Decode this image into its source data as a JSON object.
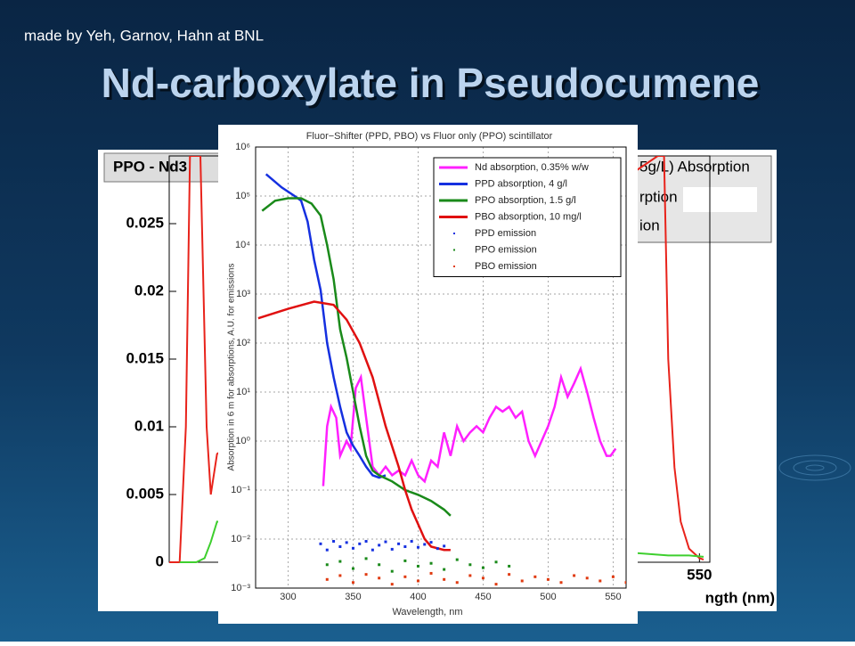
{
  "slide": {
    "credit": "made by Yeh, Garnov, Hahn at BNL",
    "title": "Nd-carboxylate in Pseudocumene"
  },
  "chart_data": [
    {
      "type": "line",
      "title": "PPO - Nd3",
      "xlabel": "ngth (nm)",
      "legend_fragments": [
        "5g/L) Absorption",
        "rption",
        "ion"
      ],
      "xlim": [
        295,
        555
      ],
      "xticks": [
        550
      ],
      "ylim": [
        0,
        0.03
      ],
      "yticks": [
        0,
        0.005,
        0.01,
        0.015,
        0.02,
        0.025
      ],
      "grid": false,
      "series": [
        {
          "color": "#e8231b",
          "x": [
            295,
            300,
            303,
            305,
            310,
            313,
            315,
            318,
            530,
            533,
            535,
            538,
            541,
            545,
            550,
            552
          ],
          "values": [
            0,
            0,
            0.01,
            0.03,
            0.03,
            0.01,
            0.005,
            0.008,
            0.03,
            0.03,
            0.015,
            0.007,
            0.003,
            0.001,
            0.0003,
            0.0002
          ]
        },
        {
          "color": "#3ecf2e",
          "x": [
            300,
            308,
            312,
            315,
            318,
            535,
            545,
            552
          ],
          "values": [
            0,
            0,
            0.0003,
            0.0015,
            0.003,
            0.0005,
            0.0005,
            0.0004
          ]
        }
      ]
    },
    {
      "type": "line",
      "title": "Fluor−Shifter (PPD, PBO) vs Fluor only (PPO) scintillator",
      "xlabel": "Wavelength, nm",
      "ylabel": "Absorption in 6 m for absorptions, A.U. for emissions",
      "xlim": [
        275,
        560
      ],
      "xticks": [
        300,
        350,
        400,
        450,
        500,
        550
      ],
      "log": true,
      "ylim": [
        0.001,
        1000000
      ],
      "yticks": [
        {
          "value": 0.001,
          "label": "10⁻³"
        },
        {
          "value": 0.01,
          "label": "10⁻²"
        },
        {
          "value": 0.1,
          "label": "10⁻¹"
        },
        {
          "value": 1,
          "label": "10⁰"
        },
        {
          "value": 10,
          "label": "10¹"
        },
        {
          "value": 100,
          "label": "10²"
        },
        {
          "value": 1000,
          "label": "10³"
        },
        {
          "value": 10000,
          "label": "10⁴"
        },
        {
          "value": 100000,
          "label": "10⁵"
        },
        {
          "value": 1000000,
          "label": "10⁶"
        }
      ],
      "grid": true,
      "legend": "upper right",
      "series": [
        {
          "name": "Nd absorption, 0.35% w/w",
          "color": "#ff20ff",
          "x": [
            327,
            330,
            333,
            337,
            340,
            345,
            348,
            352,
            356,
            360,
            365,
            370,
            375,
            380,
            385,
            390,
            395,
            400,
            405,
            410,
            415,
            420,
            425,
            430,
            435,
            440,
            445,
            450,
            455,
            460,
            465,
            470,
            475,
            480,
            485,
            490,
            495,
            500,
            505,
            510,
            515,
            520,
            525,
            530,
            535,
            540,
            545,
            548,
            552
          ],
          "values": [
            0.12,
            2,
            5,
            3,
            0.5,
            1,
            0.7,
            12,
            20,
            3,
            0.3,
            0.2,
            0.3,
            0.2,
            0.25,
            0.2,
            0.4,
            0.2,
            0.15,
            0.4,
            0.3,
            1.5,
            0.5,
            2,
            1,
            1.5,
            2,
            1.5,
            3,
            5,
            4,
            5,
            3,
            4,
            1,
            0.5,
            1,
            2,
            5,
            20,
            8,
            15,
            30,
            10,
            3,
            1,
            0.5,
            0.5,
            0.7
          ]
        },
        {
          "name": "PPD absorption, 4 g/l",
          "color": "#1530e0",
          "x": [
            283,
            295,
            305,
            310,
            315,
            320,
            325,
            330,
            335,
            340,
            345,
            350,
            355,
            360,
            365,
            370,
            375
          ],
          "values": [
            280000,
            150000,
            100000,
            80000,
            30000,
            5000,
            1200,
            100,
            20,
            5,
            1.5,
            0.8,
            0.5,
            0.3,
            0.2,
            0.18,
            0.2
          ]
        },
        {
          "name": "PPO absorption, 1.5 g/l",
          "color": "#1a8a1a",
          "x": [
            280,
            290,
            300,
            310,
            318,
            325,
            330,
            335,
            340,
            345,
            350,
            355,
            360,
            365,
            370,
            380,
            390,
            400,
            410,
            420,
            425
          ],
          "values": [
            50000,
            80000,
            90000,
            90000,
            70000,
            40000,
            10000,
            2000,
            190,
            50,
            10,
            2,
            0.5,
            0.25,
            0.2,
            0.15,
            0.1,
            0.08,
            0.06,
            0.04,
            0.03
          ]
        },
        {
          "name": "PBO absorption, 10 mg/l",
          "color": "#e01010",
          "x": [
            277,
            300,
            320,
            335,
            345,
            355,
            365,
            375,
            385,
            390,
            395,
            400,
            405,
            410,
            420,
            425
          ],
          "values": [
            320,
            500,
            700,
            600,
            300,
            100,
            20,
            2,
            0.3,
            0.1,
            0.04,
            0.02,
            0.01,
            0.007,
            0.006,
            0.006
          ]
        },
        {
          "name": "PPD emission",
          "color": "#1530e0",
          "style": "markers",
          "x": [
            325,
            330,
            335,
            340,
            345,
            350,
            355,
            360,
            365,
            370,
            375,
            380,
            385,
            390,
            395,
            400,
            405,
            410,
            415,
            420
          ],
          "values": [
            0.008,
            0.006,
            0.009,
            0.007,
            0.0085,
            0.0065,
            0.008,
            0.009,
            0.006,
            0.0075,
            0.0088,
            0.0062,
            0.008,
            0.007,
            0.009,
            0.0068,
            0.0078,
            0.0086,
            0.0064,
            0.0072
          ]
        },
        {
          "name": "PPO emission",
          "color": "#1a8a1a",
          "style": "markers",
          "x": [
            330,
            340,
            350,
            360,
            370,
            380,
            390,
            400,
            410,
            420,
            430,
            440,
            450,
            460,
            470
          ],
          "values": [
            0.003,
            0.0035,
            0.0025,
            0.004,
            0.003,
            0.0022,
            0.0036,
            0.0028,
            0.0032,
            0.0024,
            0.0038,
            0.003,
            0.0026,
            0.0034,
            0.0028
          ]
        },
        {
          "name": "PBO emission",
          "color": "#e03a10",
          "style": "markers",
          "x": [
            330,
            340,
            350,
            360,
            370,
            380,
            390,
            400,
            410,
            420,
            430,
            440,
            450,
            460,
            470,
            480,
            490,
            500,
            510,
            520,
            530,
            540,
            550,
            560
          ],
          "values": [
            0.0015,
            0.0018,
            0.0013,
            0.0019,
            0.0016,
            0.0012,
            0.0017,
            0.0014,
            0.002,
            0.0015,
            0.0013,
            0.0018,
            0.0016,
            0.0012,
            0.0019,
            0.0014,
            0.0017,
            0.0015,
            0.0013,
            0.0018,
            0.0016,
            0.0014,
            0.0017,
            0.0013
          ]
        }
      ]
    }
  ]
}
